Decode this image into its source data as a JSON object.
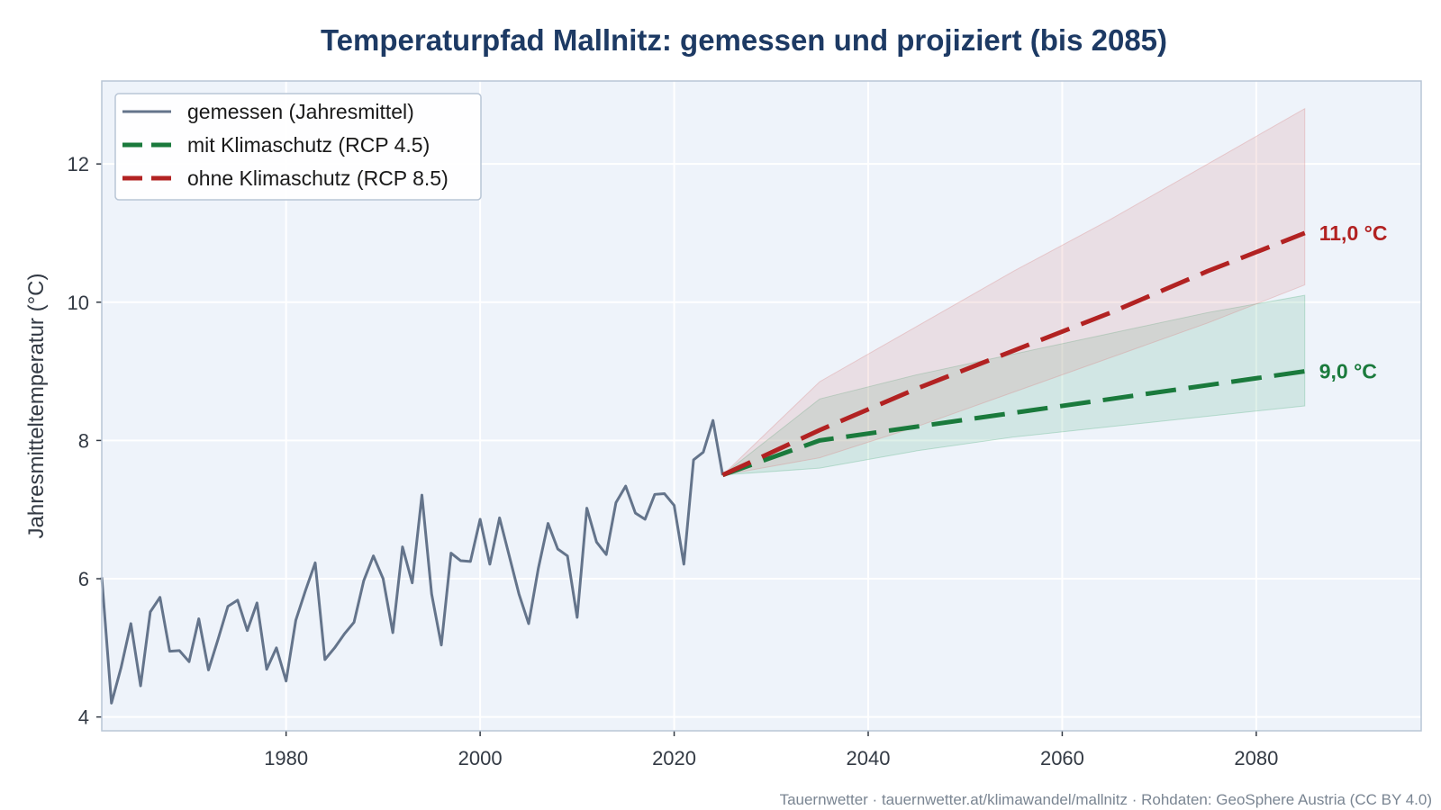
{
  "chart_data": {
    "type": "line",
    "title": "Temperaturpfad Mallnitz: gemessen und projiziert (bis 2085)",
    "ylabel": "Jahresmitteltemperatur (°C)",
    "xlabel": "",
    "xlim": [
      1961,
      2097
    ],
    "ylim": [
      3.8,
      13.2
    ],
    "x_ticks": [
      1980,
      2000,
      2020,
      2040,
      2060,
      2080
    ],
    "y_ticks": [
      4,
      6,
      8,
      10,
      12
    ],
    "grid": true,
    "legend_position": "top-left",
    "series": [
      {
        "name": "gemessen (Jahresmittel)",
        "style": "solid",
        "color": "#64748b",
        "x": [
          1961,
          1962,
          1963,
          1964,
          1965,
          1966,
          1967,
          1968,
          1969,
          1970,
          1971,
          1972,
          1973,
          1974,
          1975,
          1976,
          1977,
          1978,
          1979,
          1980,
          1981,
          1982,
          1983,
          1984,
          1985,
          1986,
          1987,
          1988,
          1989,
          1990,
          1991,
          1992,
          1993,
          1994,
          1995,
          1996,
          1997,
          1998,
          1999,
          2000,
          2001,
          2002,
          2003,
          2004,
          2005,
          2006,
          2007,
          2008,
          2009,
          2010,
          2011,
          2012,
          2013,
          2014,
          2015,
          2016,
          2017,
          2018,
          2019,
          2020,
          2021,
          2022,
          2023,
          2024,
          2025
        ],
        "y": [
          6.02,
          4.2,
          4.72,
          5.35,
          4.45,
          5.52,
          5.73,
          4.95,
          4.96,
          4.8,
          5.42,
          4.68,
          5.13,
          5.6,
          5.69,
          5.25,
          5.65,
          4.69,
          5.0,
          4.52,
          5.4,
          5.83,
          6.23,
          4.83,
          5.0,
          5.2,
          5.37,
          5.97,
          6.33,
          6.0,
          5.22,
          6.46,
          5.94,
          7.21,
          5.78,
          5.04,
          6.37,
          6.26,
          6.25,
          6.86,
          6.21,
          6.88,
          6.33,
          5.78,
          5.35,
          6.15,
          6.8,
          6.43,
          6.33,
          5.44,
          7.02,
          6.53,
          6.35,
          7.1,
          7.34,
          6.95,
          6.86,
          7.22,
          7.23,
          7.06,
          6.21,
          7.72,
          7.83,
          8.29,
          7.5
        ]
      },
      {
        "name": "mit Klimaschutz (RCP 4.5)",
        "style": "dashed",
        "color": "#1a7a3c",
        "band_color": "#5fb48a",
        "x": [
          2025,
          2035,
          2045,
          2055,
          2065,
          2075,
          2085
        ],
        "y": [
          7.5,
          8.0,
          8.2,
          8.4,
          8.6,
          8.8,
          9.0
        ],
        "lower": [
          7.5,
          7.6,
          7.85,
          8.05,
          8.2,
          8.35,
          8.5
        ],
        "upper": [
          7.5,
          8.6,
          8.95,
          9.25,
          9.55,
          9.85,
          10.1
        ]
      },
      {
        "name": "ohne Klimaschutz (RCP 8.5)",
        "style": "dashed",
        "color": "#b22222",
        "band_color": "#d98a8a",
        "x": [
          2025,
          2035,
          2045,
          2055,
          2065,
          2075,
          2085
        ],
        "y": [
          7.5,
          8.15,
          8.75,
          9.3,
          9.85,
          10.45,
          11.0
        ],
        "lower": [
          7.5,
          7.75,
          8.2,
          8.7,
          9.2,
          9.7,
          10.25
        ],
        "upper": [
          7.5,
          8.85,
          9.65,
          10.45,
          11.2,
          12.0,
          12.8
        ]
      }
    ],
    "annotations": [
      {
        "text": "11,0 °C",
        "x": 2085,
        "y": 11.0,
        "color": "#b22222"
      },
      {
        "text": "9,0 °C",
        "x": 2085,
        "y": 9.0,
        "color": "#1a7a3c"
      }
    ],
    "colors": {
      "plot_background": "#eef3fa",
      "grid": "#ffffff",
      "frame": "#b9c6d6",
      "title": "#1d3a64"
    }
  },
  "footer": "Tauernwetter · tauernwetter.at/klimawandel/mallnitz · Rohdaten: GeoSphere Austria (CC BY 4.0)"
}
